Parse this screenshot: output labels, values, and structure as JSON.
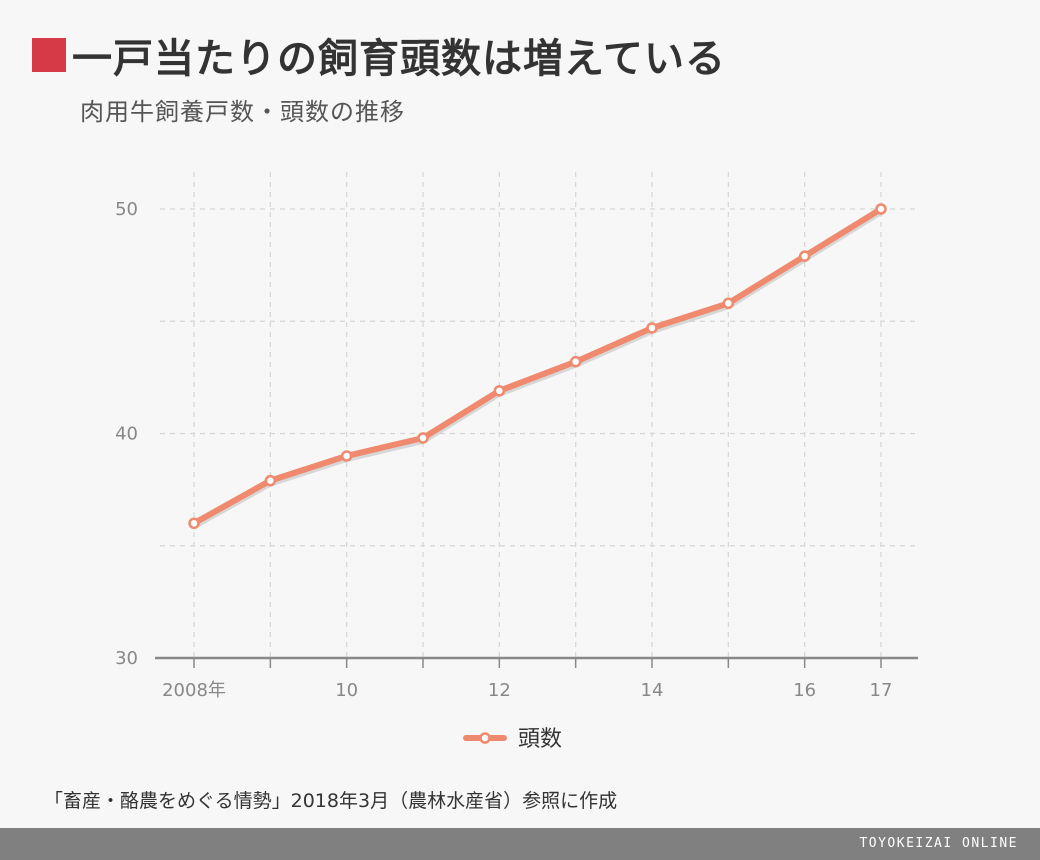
{
  "header": {
    "title": "一戸当たりの飼育頭数は増えている",
    "subtitle": "肉用牛飼養戸数・頭数の推移"
  },
  "source_note": "「畜産・酪農をめぐる情勢」2018年3月（農林水産省）参照に作成",
  "brand": "TOYOKEIZAI ONLINE",
  "colors": {
    "accent": "#d63a47",
    "line": "#ef8a6f",
    "line_shadow": "#c9c9c9",
    "grid": "#d6d6d6",
    "axis": "#888888"
  },
  "chart_data": {
    "type": "line",
    "x": [
      2008,
      2009,
      2010,
      2011,
      2012,
      2013,
      2014,
      2015,
      2016,
      2017
    ],
    "x_tick_labels": [
      {
        "x": 2008,
        "label": "2008年"
      },
      {
        "x": 2010,
        "label": "10"
      },
      {
        "x": 2012,
        "label": "12"
      },
      {
        "x": 2014,
        "label": "14"
      },
      {
        "x": 2016,
        "label": "16"
      },
      {
        "x": 2017,
        "label": "17"
      }
    ],
    "series": [
      {
        "name": "頭数",
        "values": [
          36.0,
          37.9,
          39.0,
          39.8,
          41.9,
          43.2,
          44.7,
          45.8,
          47.9,
          50.0
        ]
      }
    ],
    "ylim": [
      30,
      50
    ],
    "y_ticks": [
      30,
      40,
      50
    ],
    "y_grid": [
      35,
      40,
      45,
      50
    ],
    "grid": true,
    "legend": "bottom-center"
  }
}
